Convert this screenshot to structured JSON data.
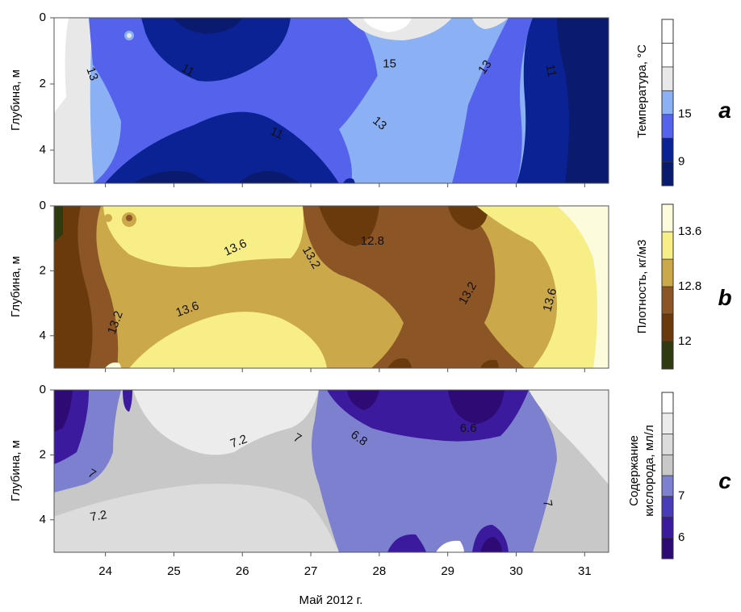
{
  "figure": {
    "xlabel": "Май 2012 г.",
    "x_ticks": [
      "24",
      "25",
      "26",
      "27",
      "28",
      "29",
      "30",
      "31"
    ],
    "x_range": [
      23.25,
      31.35
    ]
  },
  "chart_data": [
    {
      "type": "contour",
      "panel_letter": "a",
      "ylabel": "Глубина, м",
      "y_ticks": [
        "0",
        "2",
        "4"
      ],
      "ylim": [
        0,
        5
      ],
      "colorbar_label": "Температура, °C",
      "colorbar_ticks": [
        "15",
        "9"
      ],
      "colorbar_colors": [
        "#0a1a6e",
        "#0b2294",
        "#5462ec",
        "#8bb0f4",
        "#e8e8e8",
        "#ffffff",
        "#ffffff"
      ],
      "contour_labels": [
        {
          "text": "13",
          "x": 23.8,
          "y": 1.7,
          "angle": 70
        },
        {
          "text": "11",
          "x": 25.2,
          "y": 1.6,
          "angle": 30
        },
        {
          "text": "15",
          "x": 28.15,
          "y": 1.4,
          "angle": 0
        },
        {
          "text": "13",
          "x": 29.55,
          "y": 1.5,
          "angle": -55
        },
        {
          "text": "11",
          "x": 30.5,
          "y": 1.6,
          "angle": 80
        },
        {
          "text": "11",
          "x": 26.5,
          "y": 3.5,
          "angle": 25
        },
        {
          "text": "13",
          "x": 28.0,
          "y": 3.2,
          "angle": 40
        }
      ]
    },
    {
      "type": "contour",
      "panel_letter": "b",
      "ylabel": "Глубина, м",
      "y_ticks": [
        "0",
        "2",
        "4"
      ],
      "ylim": [
        0,
        5
      ],
      "colorbar_label": "Плотность, кг/м3",
      "colorbar_ticks": [
        "13.6",
        "12.8",
        "12"
      ],
      "colorbar_colors": [
        "#2f3a10",
        "#6a3a0c",
        "#8c5526",
        "#cba84a",
        "#f7ee88",
        "#fcfbdc"
      ],
      "contour_labels": [
        {
          "text": "13.6",
          "x": 25.9,
          "y": 1.3,
          "angle": -25
        },
        {
          "text": "12.8",
          "x": 27.9,
          "y": 1.1,
          "angle": 0
        },
        {
          "text": "13.2",
          "x": 27.0,
          "y": 1.6,
          "angle": 60
        },
        {
          "text": "13.2",
          "x": 24.15,
          "y": 3.6,
          "angle": -70
        },
        {
          "text": "13.6",
          "x": 25.2,
          "y": 3.2,
          "angle": -20
        },
        {
          "text": "13.2",
          "x": 29.3,
          "y": 2.7,
          "angle": -60
        },
        {
          "text": "13.6",
          "x": 30.5,
          "y": 2.9,
          "angle": -75
        }
      ]
    },
    {
      "type": "contour",
      "panel_letter": "c",
      "ylabel_line1": "Глубина, м",
      "y_ticks": [
        "0",
        "2",
        "4"
      ],
      "ylim": [
        0,
        5
      ],
      "colorbar_label_line1": "Содержание",
      "colorbar_label_line2": "кислорода, мл/л",
      "colorbar_ticks": [
        "7",
        "6"
      ],
      "colorbar_colors": [
        "#2e0a74",
        "#3c1a9e",
        "#4a3bb8",
        "#7c80ce",
        "#c8c8c8",
        "#dcdcdc",
        "#ececec",
        "#ffffff"
      ],
      "contour_labels": [
        {
          "text": "7.2",
          "x": 25.95,
          "y": 1.6,
          "angle": -20
        },
        {
          "text": "7",
          "x": 26.8,
          "y": 1.5,
          "angle": 30
        },
        {
          "text": "6.8",
          "x": 27.7,
          "y": 1.5,
          "angle": 35
        },
        {
          "text": "6.6",
          "x": 29.3,
          "y": 1.2,
          "angle": 0
        },
        {
          "text": "7",
          "x": 23.8,
          "y": 2.6,
          "angle": 30
        },
        {
          "text": "7.2",
          "x": 23.9,
          "y": 3.9,
          "angle": -10
        },
        {
          "text": "7",
          "x": 30.45,
          "y": 3.5,
          "angle": 80
        }
      ]
    }
  ]
}
